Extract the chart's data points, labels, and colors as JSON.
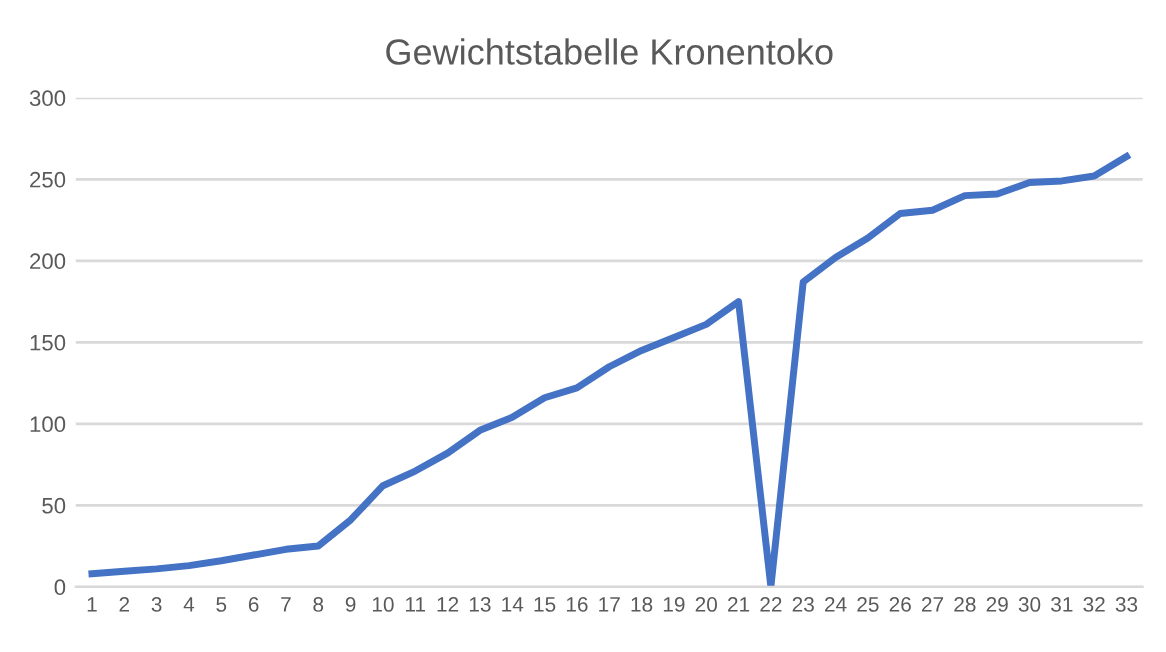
{
  "chart_data": {
    "type": "line",
    "title": "Gewichtstabelle Kronentoko",
    "categories": [
      "1",
      "2",
      "3",
      "4",
      "5",
      "6",
      "7",
      "8",
      "9",
      "10",
      "11",
      "12",
      "13",
      "14",
      "15",
      "16",
      "17",
      "18",
      "19",
      "20",
      "21",
      "22",
      "23",
      "24",
      "25",
      "26",
      "27",
      "28",
      "29",
      "30",
      "31",
      "32",
      "33"
    ],
    "series": [
      {
        "color": "#4472c4",
        "values": [
          8,
          9.5,
          11,
          13,
          16,
          19.5,
          23,
          25,
          41,
          62,
          71,
          82,
          96,
          104,
          116,
          122,
          135,
          145,
          153,
          161,
          175,
          0,
          187,
          202,
          214,
          229,
          231,
          240,
          241,
          248,
          249,
          252,
          264
        ]
      }
    ],
    "ylim": [
      0,
      300
    ],
    "yticks": [
      0,
      50,
      100,
      150,
      200,
      250,
      300
    ],
    "grid": "y",
    "marker": "none",
    "line_style": "solid"
  }
}
